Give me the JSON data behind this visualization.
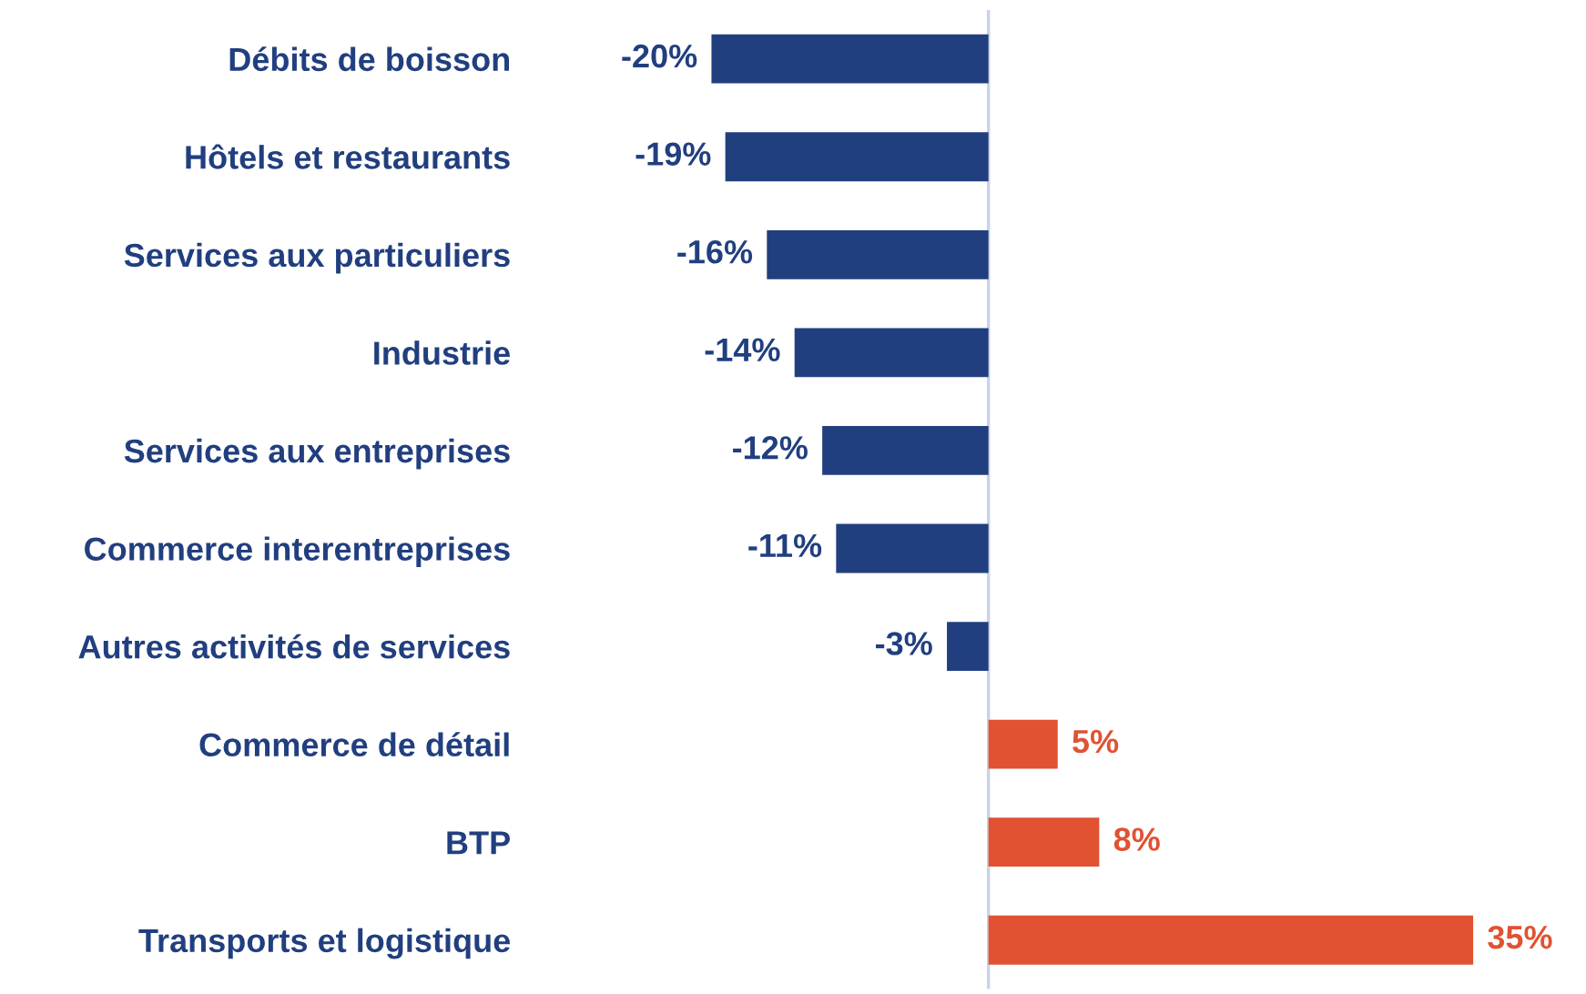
{
  "chart_data": {
    "type": "bar",
    "orientation": "horizontal",
    "categories": [
      "Débits de boisson",
      "Hôtels et restaurants",
      "Services aux particuliers",
      "Industrie",
      "Services aux entreprises",
      "Commerce interentreprises",
      "Autres activités de services",
      "Commerce de détail",
      "BTP",
      "Transports et logistique"
    ],
    "values": [
      -20,
      -19,
      -16,
      -14,
      -12,
      -11,
      -3,
      5,
      8,
      35
    ],
    "colors": [
      "#213f7f",
      "#213f7f",
      "#213f7f",
      "#213f7f",
      "#213f7f",
      "#213f7f",
      "#213f7f",
      "#e05232",
      "#e05232",
      "#e05232"
    ],
    "value_labels": [
      "-20%",
      "-19%",
      "-16%",
      "-14%",
      "-12%",
      "-11%",
      "-3%",
      "5%",
      "8%",
      "35%"
    ],
    "tick_labels": "y",
    "grid": false,
    "legend": false
  }
}
